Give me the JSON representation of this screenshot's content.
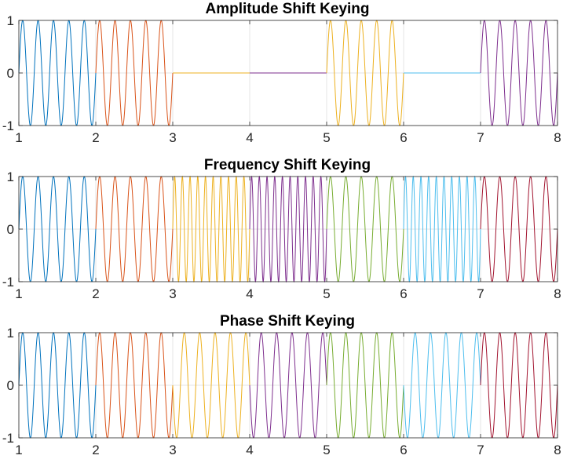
{
  "chart_data": [
    {
      "type": "line",
      "title": "Amplitude Shift Keying",
      "xlim": [
        1,
        8
      ],
      "ylim": [
        -1,
        1
      ],
      "xticks": [
        "1",
        "2",
        "3",
        "4",
        "5",
        "6",
        "7",
        "8"
      ],
      "yticks": [
        "-1",
        "0",
        "1"
      ],
      "grid": true,
      "cycles_per_unit": 5,
      "series": [
        {
          "x_range": [
            1,
            2
          ],
          "amplitude": 1,
          "cycles_per_unit": 5,
          "phase_deg": 0,
          "color": "#0072BD"
        },
        {
          "x_range": [
            2,
            3
          ],
          "amplitude": 1,
          "cycles_per_unit": 5,
          "phase_deg": 0,
          "color": "#D95319"
        },
        {
          "x_range": [
            3,
            4
          ],
          "amplitude": 0,
          "cycles_per_unit": 5,
          "phase_deg": 0,
          "color": "#EDB120"
        },
        {
          "x_range": [
            4,
            5
          ],
          "amplitude": 0,
          "cycles_per_unit": 5,
          "phase_deg": 0,
          "color": "#7E2F8E"
        },
        {
          "x_range": [
            5,
            6
          ],
          "amplitude": 1,
          "cycles_per_unit": 5,
          "phase_deg": 0,
          "color": "#EDB120"
        },
        {
          "x_range": [
            6,
            7
          ],
          "amplitude": 0,
          "cycles_per_unit": 5,
          "phase_deg": 0,
          "color": "#4DBEEE"
        },
        {
          "x_range": [
            7,
            8
          ],
          "amplitude": 1,
          "cycles_per_unit": 5,
          "phase_deg": 0,
          "color": "#7E2F8E"
        }
      ]
    },
    {
      "type": "line",
      "title": "Frequency Shift Keying",
      "xlim": [
        1,
        8
      ],
      "ylim": [
        -1,
        1
      ],
      "xticks": [
        "1",
        "2",
        "3",
        "4",
        "5",
        "6",
        "7",
        "8"
      ],
      "yticks": [
        "-1",
        "0",
        "1"
      ],
      "grid": true,
      "series": [
        {
          "x_range": [
            1,
            2
          ],
          "amplitude": 1,
          "cycles_per_unit": 5,
          "phase_deg": 0,
          "color": "#0072BD"
        },
        {
          "x_range": [
            2,
            3
          ],
          "amplitude": 1,
          "cycles_per_unit": 5,
          "phase_deg": 0,
          "color": "#D95319"
        },
        {
          "x_range": [
            3,
            4
          ],
          "amplitude": 1,
          "cycles_per_unit": 10,
          "phase_deg": 0,
          "color": "#EDB120"
        },
        {
          "x_range": [
            4,
            5
          ],
          "amplitude": 1,
          "cycles_per_unit": 10,
          "phase_deg": 0,
          "color": "#7E2F8E"
        },
        {
          "x_range": [
            5,
            6
          ],
          "amplitude": 1,
          "cycles_per_unit": 5,
          "phase_deg": 0,
          "color": "#77AC30"
        },
        {
          "x_range": [
            6,
            7
          ],
          "amplitude": 1,
          "cycles_per_unit": 10,
          "phase_deg": 0,
          "color": "#4DBEEE"
        },
        {
          "x_range": [
            7,
            8
          ],
          "amplitude": 1,
          "cycles_per_unit": 5,
          "phase_deg": 0,
          "color": "#A2142F"
        }
      ]
    },
    {
      "type": "line",
      "title": "Phase Shift Keying",
      "xlim": [
        1,
        8
      ],
      "ylim": [
        -1,
        1
      ],
      "xticks": [
        "1",
        "2",
        "3",
        "4",
        "5",
        "6",
        "7",
        "8"
      ],
      "yticks": [
        "-1",
        "0",
        "1"
      ],
      "grid": true,
      "series": [
        {
          "x_range": [
            1,
            2
          ],
          "amplitude": 1,
          "cycles_per_unit": 5,
          "phase_deg": 0,
          "color": "#0072BD"
        },
        {
          "x_range": [
            2,
            3
          ],
          "amplitude": 1,
          "cycles_per_unit": 5,
          "phase_deg": 0,
          "color": "#D95319"
        },
        {
          "x_range": [
            3,
            4
          ],
          "amplitude": 1,
          "cycles_per_unit": 5,
          "phase_deg": 180,
          "color": "#EDB120"
        },
        {
          "x_range": [
            4,
            5
          ],
          "amplitude": 1,
          "cycles_per_unit": 5,
          "phase_deg": 180,
          "color": "#7E2F8E"
        },
        {
          "x_range": [
            5,
            6
          ],
          "amplitude": 1,
          "cycles_per_unit": 5,
          "phase_deg": 0,
          "color": "#77AC30"
        },
        {
          "x_range": [
            6,
            7
          ],
          "amplitude": 1,
          "cycles_per_unit": 5,
          "phase_deg": 180,
          "color": "#4DBEEE"
        },
        {
          "x_range": [
            7,
            8
          ],
          "amplitude": 1,
          "cycles_per_unit": 5,
          "phase_deg": 0,
          "color": "#A2142F"
        }
      ]
    }
  ]
}
